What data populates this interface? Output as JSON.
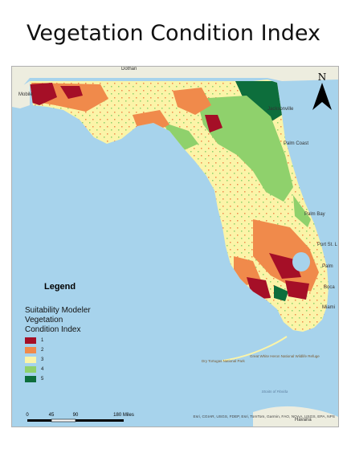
{
  "title": "Vegetation Condition Index",
  "north_arrow": {
    "label": "N"
  },
  "legend": {
    "heading": "Legend",
    "layer_lines": [
      "Suitability Modeler",
      "Vegetation",
      "Condition Index"
    ],
    "classes": [
      {
        "label": "1",
        "color": "#a50f27"
      },
      {
        "label": "2",
        "color": "#f08a4b"
      },
      {
        "label": "3",
        "color": "#fbf4a8"
      },
      {
        "label": "4",
        "color": "#8fd16c"
      },
      {
        "label": "5",
        "color": "#0d6e3c"
      }
    ]
  },
  "places": [
    {
      "name": "Dothan"
    },
    {
      "name": "Mobile"
    },
    {
      "name": "Jacksonville"
    },
    {
      "name": "Palm Coast"
    },
    {
      "name": "Palm Bay"
    },
    {
      "name": "Port St. L"
    },
    {
      "name": "Palm"
    },
    {
      "name": "Boca"
    },
    {
      "name": "Miami"
    },
    {
      "name": "Havana"
    }
  ],
  "parks": [
    {
      "name": "Dry Tortugas National Park"
    },
    {
      "name": "Great White Heron National Wildlife Refuge"
    }
  ],
  "water_labels": [
    {
      "name": "Straits of Florida"
    }
  ],
  "scale": {
    "ticks": [
      "0",
      "45",
      "90",
      "180 Miles"
    ]
  },
  "credits": "Esri, CGIAR, USGS, FDEP, Esri, TomTom, Garmin, FAO, NOAA, USGS, EPA, NPS",
  "colors": {
    "ocean": "#a7d3ec",
    "land": "#ededdf",
    "class3_base": "#fbf4a8"
  }
}
